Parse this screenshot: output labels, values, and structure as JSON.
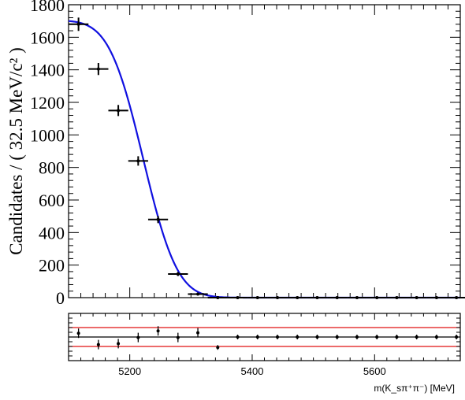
{
  "chart_data": [
    {
      "type": "scatter",
      "panel": "main",
      "ylabel": "Candidates / ( 32.5 MeV/c² )",
      "xlim": [
        5100,
        5740
      ],
      "ylim": [
        0,
        1800
      ],
      "ytick_labels": [
        "0",
        "200",
        "400",
        "600",
        "800",
        "1000",
        "1200",
        "1400",
        "1600",
        "1800"
      ],
      "bin_width": 32.5,
      "series": [
        {
          "kind": "points_with_errors",
          "x": [
            5116.25,
            5148.75,
            5181.25,
            5213.75,
            5246.25,
            5278.75,
            5311.25,
            5343.75,
            5376.25,
            5408.75,
            5441.25,
            5473.75,
            5506.25,
            5538.75,
            5571.25,
            5603.75,
            5636.25,
            5668.75,
            5701.25,
            5733.75
          ],
          "y": [
            1680,
            1405,
            1150,
            840,
            480,
            145,
            22,
            0,
            0,
            0,
            0,
            0,
            0,
            0,
            0,
            0,
            0,
            0,
            0,
            0
          ],
          "yerr": [
            41,
            37,
            34,
            29,
            22,
            12,
            5,
            0,
            0,
            0,
            0,
            0,
            0,
            0,
            0,
            0,
            0,
            0,
            0,
            0
          ]
        },
        {
          "kind": "fit_curve",
          "color": "#1010e0",
          "model": "1700 * erfc((x - 5222) / 62) / erfc((5100 - 5222) / 62)"
        }
      ],
      "grid": false
    },
    {
      "type": "scatter",
      "panel": "pull",
      "xlabel": "m(K_sπ⁺π⁻) [MeV]",
      "xlim": [
        5100,
        5740
      ],
      "xtick_values": [
        5200,
        5400,
        5600
      ],
      "xtick_labels": [
        "5200",
        "5400",
        "5600"
      ],
      "ylim": [
        -5,
        5
      ],
      "reference_lines": [
        {
          "y": 0,
          "color": "#000000"
        },
        {
          "y": 2,
          "color": "#e01010"
        },
        {
          "y": -2,
          "color": "#e01010"
        }
      ],
      "series": [
        {
          "kind": "points_with_errors",
          "x": [
            5116.25,
            5148.75,
            5181.25,
            5213.75,
            5246.25,
            5278.75,
            5311.25,
            5343.75,
            5376.25,
            5408.75,
            5441.25,
            5473.75,
            5506.25,
            5538.75,
            5571.25,
            5603.75,
            5636.25,
            5668.75,
            5701.25,
            5733.75
          ],
          "y": [
            0.8,
            -1.6,
            -1.4,
            -0.1,
            1.3,
            -0.1,
            0.9,
            -2.2,
            0,
            0,
            0,
            0,
            0,
            0,
            0,
            0,
            0,
            0,
            0,
            0
          ],
          "yerr": [
            1,
            1,
            1,
            1,
            1,
            1,
            1,
            0.5,
            0.5,
            0.5,
            0.5,
            0.5,
            0.5,
            0.5,
            0.5,
            0.5,
            0.5,
            0.5,
            0.5,
            0.5
          ]
        }
      ]
    }
  ]
}
